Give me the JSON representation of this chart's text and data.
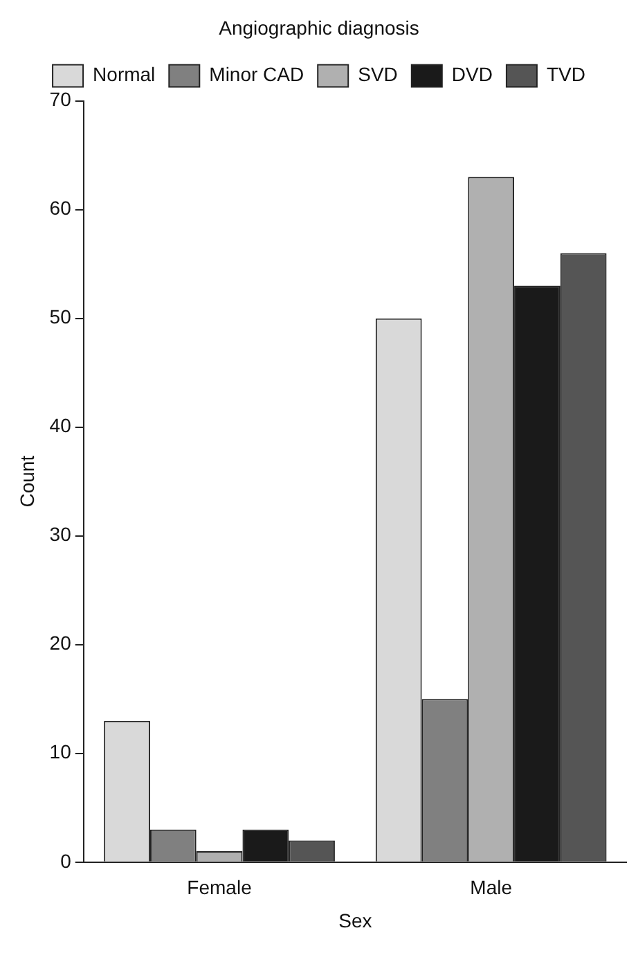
{
  "chart_data": {
    "type": "bar",
    "xlabel": "Sex",
    "ylabel": "Count",
    "legend_title": "Angiographic diagnosis",
    "categories": [
      "Female",
      "Male"
    ],
    "series": [
      {
        "name": "Normal",
        "color": "#d9d9d9",
        "values": [
          13,
          50
        ]
      },
      {
        "name": "Minor CAD",
        "color": "#808080",
        "values": [
          3,
          15
        ]
      },
      {
        "name": "SVD",
        "color": "#b0b0b0",
        "values": [
          1,
          63
        ]
      },
      {
        "name": "DVD",
        "color": "#1a1a1a",
        "values": [
          3,
          53
        ]
      },
      {
        "name": "TVD",
        "color": "#555555",
        "values": [
          2,
          56
        ]
      }
    ],
    "ylim": [
      0,
      70
    ],
    "yticks": [
      0,
      10,
      20,
      30,
      40,
      50,
      60,
      70
    ],
    "grid": false,
    "legend": "top"
  }
}
